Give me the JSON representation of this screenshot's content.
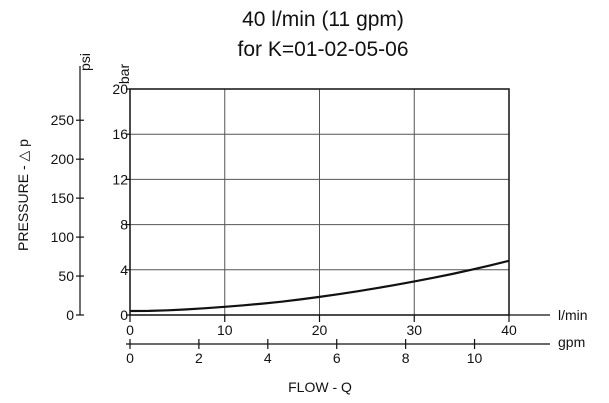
{
  "chart_data": {
    "type": "line",
    "title_line1": "40 l/min (11 gpm)",
    "title_line2": "for K=01-02-05-06",
    "xlabel": "FLOW - Q",
    "ylabel": "PRESSURE - △ p",
    "x_unit_primary": "l/min",
    "x_unit_secondary": "gpm",
    "y_unit_primary": "bar",
    "y_unit_secondary": "psi",
    "xlim": [
      0,
      40
    ],
    "ylim": [
      0,
      20
    ],
    "grid": true,
    "x_ticks": [
      "0",
      "10",
      "20",
      "30",
      "40"
    ],
    "x_tick_values": [
      0,
      10,
      20,
      30,
      40
    ],
    "y_ticks": [
      "20",
      "16",
      "12",
      "8",
      "4",
      "0"
    ],
    "y_tick_values": [
      20,
      16,
      12,
      8,
      4,
      0
    ],
    "gpm_ticks": [
      "0",
      "2",
      "4",
      "6",
      "8",
      "10"
    ],
    "gpm_tick_values": [
      0,
      2,
      4,
      6,
      8,
      10
    ],
    "psi_ticks": [
      "250",
      "200",
      "150",
      "100",
      "50",
      "0"
    ],
    "psi_tick_values": [
      250,
      200,
      150,
      100,
      50,
      0
    ],
    "series": [
      {
        "x": [
          0,
          2,
          4,
          6,
          8,
          10,
          12,
          14,
          16,
          18,
          20,
          22,
          24,
          26,
          28,
          30,
          32,
          34,
          36,
          38,
          40
        ],
        "values": [
          0.35,
          0.36,
          0.42,
          0.5,
          0.6,
          0.73,
          0.86,
          1.01,
          1.18,
          1.38,
          1.6,
          1.84,
          2.1,
          2.37,
          2.66,
          2.97,
          3.29,
          3.63,
          4.0,
          4.39,
          4.8
        ]
      }
    ]
  }
}
